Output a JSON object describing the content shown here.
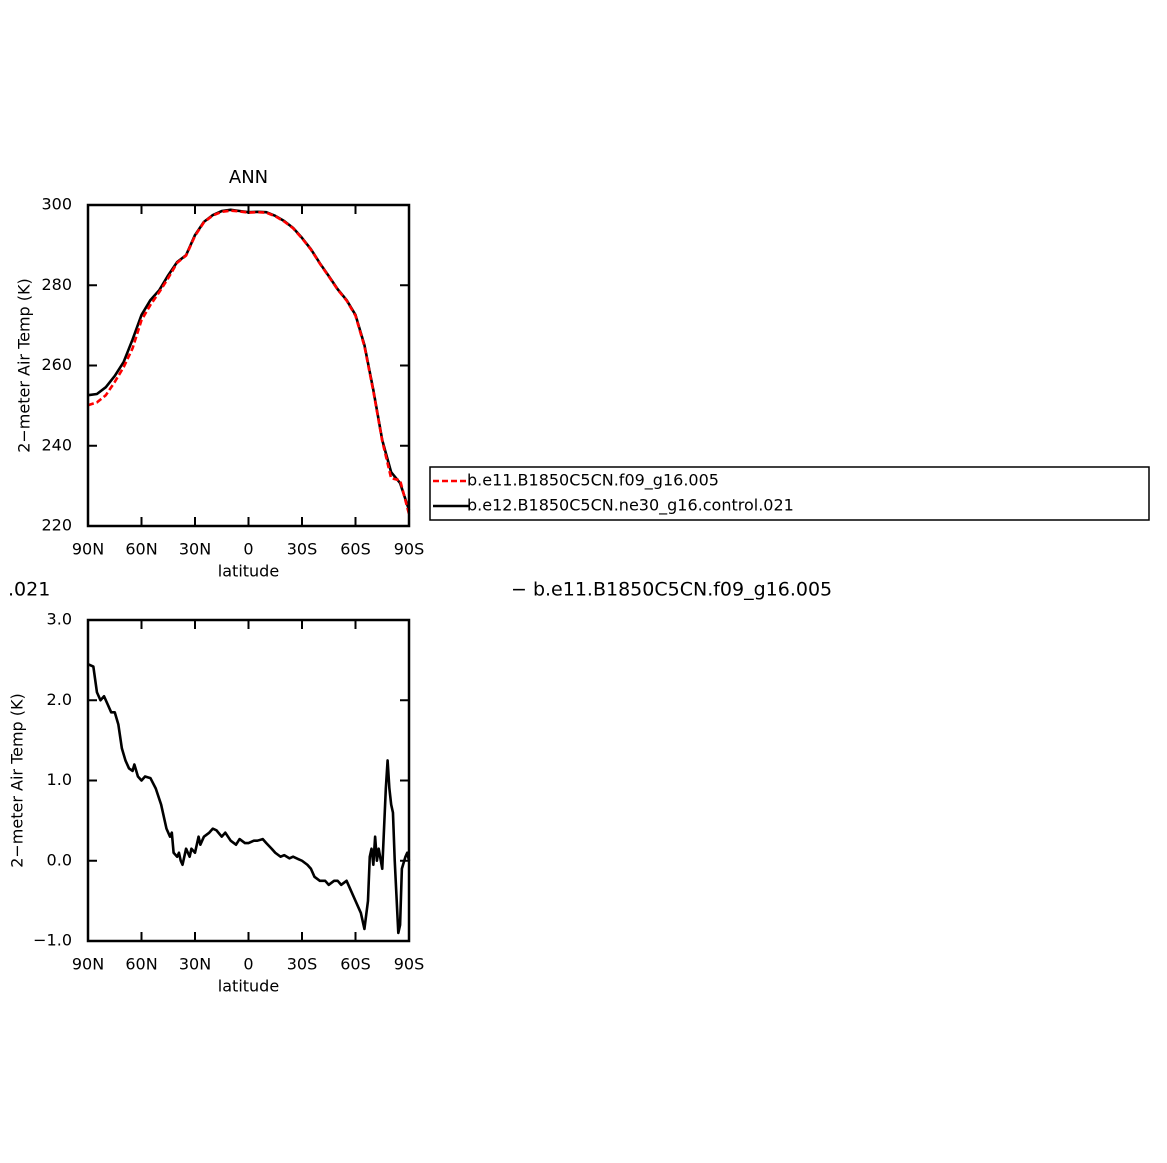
{
  "chart_data": [
    {
      "type": "line",
      "title": "ANN",
      "xlabel": "latitude",
      "ylabel": "2−meter Air Temp (K)",
      "x": [
        90,
        85,
        80,
        75,
        70,
        65,
        60,
        55,
        50,
        45,
        40,
        35,
        30,
        25,
        20,
        15,
        10,
        5,
        0,
        -5,
        -10,
        -15,
        -20,
        -25,
        -30,
        -35,
        -40,
        -45,
        -50,
        -55,
        -60,
        -65,
        -70,
        -75,
        -80,
        -85,
        -90
      ],
      "series": [
        {
          "name": "b.e11.B1850C5CN.f09_g16.005",
          "color": "#ff0000",
          "dashed": true,
          "values": [
            250.1,
            250.8,
            252.6,
            255.9,
            259.6,
            264.3,
            271.3,
            275.1,
            278.3,
            281.8,
            285.6,
            287.4,
            292.3,
            295.7,
            297.4,
            298.3,
            298.6,
            298.4,
            298.1,
            298.2,
            298.1,
            297.2,
            295.9,
            294.2,
            291.7,
            288.9,
            285.4,
            282.2,
            278.9,
            276.2,
            272.4,
            264.8,
            253.6,
            241.2,
            231.9,
            231.4,
            223.0
          ]
        },
        {
          "name": "b.e12.B1850C5CN.ne30_g16.control.021",
          "color": "#000000",
          "dashed": false,
          "values": [
            252.6,
            252.9,
            254.6,
            257.4,
            260.9,
            266.5,
            272.6,
            276.3,
            278.8,
            282.5,
            285.8,
            287.5,
            292.5,
            295.8,
            297.5,
            298.5,
            298.8,
            298.5,
            298.2,
            298.3,
            298.2,
            297.3,
            296.0,
            294.3,
            291.8,
            289.0,
            285.5,
            282.3,
            279.0,
            276.3,
            272.6,
            265.1,
            253.9,
            241.4,
            233.4,
            230.7,
            224.0
          ]
        }
      ],
      "xlim": [
        90,
        -90
      ],
      "xticks": [
        {
          "value": 90,
          "label": "90N"
        },
        {
          "value": 60,
          "label": "60N"
        },
        {
          "value": 30,
          "label": "30N"
        },
        0,
        {
          "value": -30,
          "label": "30S"
        },
        {
          "value": -60,
          "label": "60S"
        },
        {
          "value": -90,
          "label": "90S"
        }
      ],
      "ylim": [
        220,
        300
      ],
      "yticks": [
        220,
        240,
        260,
        280,
        300
      ],
      "legend": "right"
    },
    {
      "type": "line",
      "xlabel": "latitude",
      "ylabel": "2−meter Air Temp (K)",
      "annotations": [
        ".021",
        "− b.e11.B1850C5CN.f09_g16.005"
      ],
      "x": [
        90,
        87,
        85,
        83,
        81,
        79,
        77,
        75,
        73,
        71,
        69,
        67,
        65,
        64,
        62,
        60,
        58,
        55,
        52,
        49,
        46,
        44,
        43,
        42,
        40,
        39,
        38,
        37,
        35,
        33,
        32,
        30,
        28,
        27,
        25,
        22,
        20,
        18,
        15,
        13,
        10,
        7,
        5,
        2,
        0,
        -3,
        -5,
        -8,
        -10,
        -13,
        -15,
        -18,
        -20,
        -23,
        -25,
        -28,
        -30,
        -33,
        -35,
        -37,
        -40,
        -43,
        -45,
        -48,
        -50,
        -52,
        -55,
        -57,
        -60,
        -63,
        -65,
        -67,
        -68,
        -69,
        -70,
        -71,
        -72,
        -73,
        -75,
        -76,
        -77,
        -78,
        -79,
        -80,
        -81,
        -82,
        -84,
        -85,
        -86,
        -88,
        -89,
        -90
      ],
      "series": [
        {
          "name": "diff",
          "color": "#000000",
          "values": [
            2.45,
            2.42,
            2.1,
            2.0,
            2.05,
            1.95,
            1.85,
            1.85,
            1.7,
            1.4,
            1.25,
            1.15,
            1.12,
            1.2,
            1.05,
            1.0,
            1.05,
            1.03,
            0.9,
            0.7,
            0.4,
            0.3,
            0.35,
            0.1,
            0.05,
            0.1,
            0.0,
            -0.05,
            0.15,
            0.05,
            0.15,
            0.1,
            0.3,
            0.2,
            0.3,
            0.35,
            0.4,
            0.38,
            0.3,
            0.35,
            0.25,
            0.2,
            0.27,
            0.22,
            0.22,
            0.25,
            0.25,
            0.27,
            0.22,
            0.15,
            0.1,
            0.05,
            0.07,
            0.03,
            0.05,
            0.02,
            0.0,
            -0.05,
            -0.1,
            -0.2,
            -0.25,
            -0.25,
            -0.3,
            -0.25,
            -0.25,
            -0.3,
            -0.25,
            -0.35,
            -0.5,
            -0.65,
            -0.85,
            -0.5,
            0.05,
            0.15,
            -0.05,
            0.3,
            0.0,
            0.15,
            -0.1,
            0.4,
            0.9,
            1.25,
            0.9,
            0.7,
            0.6,
            0.0,
            -0.9,
            -0.8,
            -0.1,
            0.05,
            0.1,
            0.0
          ]
        }
      ],
      "xlim": [
        90,
        -90
      ],
      "xticks": [
        {
          "value": 90,
          "label": "90N"
        },
        {
          "value": 60,
          "label": "60N"
        },
        {
          "value": 30,
          "label": "30N"
        },
        0,
        {
          "value": -30,
          "label": "30S"
        },
        {
          "value": -60,
          "label": "60S"
        },
        {
          "value": -90,
          "label": "90S"
        }
      ],
      "ylim": [
        -1,
        3
      ],
      "yticks": [
        {
          "value": -1,
          "label": "−1.0"
        },
        {
          "value": 0,
          "label": "0.0"
        },
        {
          "value": 1,
          "label": "1.0"
        },
        {
          "value": 2,
          "label": "2.0"
        },
        {
          "value": 3,
          "label": "3.0"
        }
      ]
    }
  ]
}
